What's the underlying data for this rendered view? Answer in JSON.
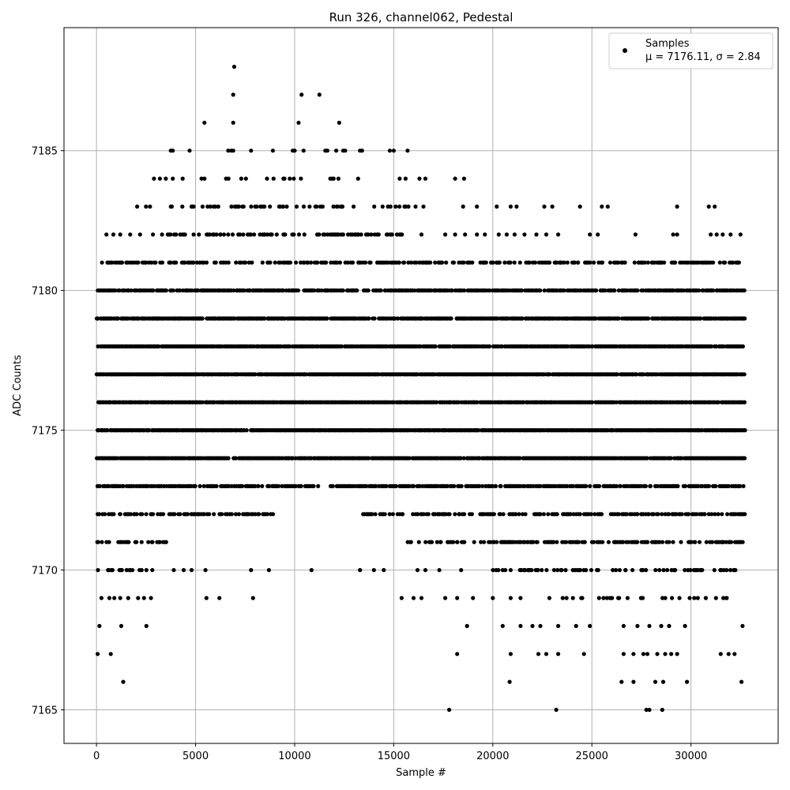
{
  "chart_data": {
    "type": "scatter",
    "title": "Run 326, channel062, Pedestal",
    "xlabel": "Sample #",
    "ylabel": "ADC Counts",
    "xlim": [
      -1640,
      34400
    ],
    "ylim": [
      7163.8,
      7189.4
    ],
    "x_ticks": [
      0,
      5000,
      10000,
      15000,
      20000,
      25000,
      30000
    ],
    "y_ticks": [
      7165,
      7170,
      7175,
      7180,
      7185
    ],
    "grid": true,
    "legend": {
      "position": "top-right",
      "label": "Samples",
      "stats": "μ = 7176.11, σ = 2.84"
    },
    "series": [
      {
        "name": "Samples",
        "color": "#000000",
        "marker": "circle",
        "bands": [
          {
            "y": 7174,
            "ranges": [
              [
                0,
                6700
              ],
              [
                6900,
                32700
              ]
            ],
            "density": 0.95
          },
          {
            "y": 7175,
            "ranges": [
              [
                0,
                32700
              ]
            ],
            "density": 0.95
          },
          {
            "y": 7176,
            "ranges": [
              [
                0,
                32700
              ]
            ],
            "density": 0.95
          },
          {
            "y": 7177,
            "ranges": [
              [
                0,
                32700
              ]
            ],
            "density": 0.95
          },
          {
            "y": 7178,
            "ranges": [
              [
                0,
                32700
              ]
            ],
            "density": 0.9
          },
          {
            "y": 7179,
            "ranges": [
              [
                0,
                32700
              ]
            ],
            "density": 0.85
          },
          {
            "y": 7180,
            "ranges": [
              [
                0,
                32700
              ]
            ],
            "density": 0.75
          },
          {
            "y": 7181,
            "ranges": [
              [
                200,
                16500
              ],
              [
                16500,
                32400
              ]
            ],
            "density": 0.5
          },
          {
            "y": 7173,
            "ranges": [
              [
                0,
                11200
              ],
              [
                11800,
                32700
              ]
            ],
            "density": 0.7
          },
          {
            "y": 7172,
            "ranges": [
              [
                0,
                8900
              ],
              [
                13400,
                32700
              ]
            ],
            "density": 0.55
          },
          {
            "y": 7171,
            "ranges": [
              [
                0,
                3500
              ],
              [
                15500,
                32700
              ]
            ],
            "density": 0.45
          },
          {
            "y": 7182,
            "ranges": [
              [
                3200,
                15400
              ]
            ],
            "density": 0.45
          },
          {
            "y": 7183,
            "ranges": [
              [
                3300,
                11400
              ],
              [
                11800,
                15700
              ]
            ],
            "density": 0.25
          },
          {
            "y": 7170,
            "ranges": [
              [
                0,
                2800
              ],
              [
                19800,
                32600
              ]
            ],
            "density": 0.3
          },
          {
            "y": 7169,
            "ranges": [
              [
                22500,
                32400
              ]
            ],
            "density": 0.15
          },
          {
            "y": 7184,
            "ranges": [
              [
                5800,
                10500
              ],
              [
                11300,
                13400
              ]
            ],
            "density": 0.15
          }
        ],
        "points": [
          [
            60,
            7167
          ],
          [
            720,
            7167
          ],
          [
            1350,
            7166
          ],
          [
            150,
            7168
          ],
          [
            1250,
            7168
          ],
          [
            2520,
            7168
          ],
          [
            250,
            7169
          ],
          [
            650,
            7169
          ],
          [
            900,
            7169
          ],
          [
            1200,
            7169
          ],
          [
            1600,
            7169
          ],
          [
            2100,
            7169
          ],
          [
            2400,
            7169
          ],
          [
            2750,
            7169
          ],
          [
            3900,
            7170
          ],
          [
            4400,
            7170
          ],
          [
            4800,
            7170
          ],
          [
            5500,
            7170
          ],
          [
            7800,
            7170
          ],
          [
            8700,
            7170
          ],
          [
            10850,
            7170
          ],
          [
            13300,
            7170
          ],
          [
            14000,
            7170
          ],
          [
            14500,
            7170
          ],
          [
            16200,
            7170
          ],
          [
            16600,
            7170
          ],
          [
            17300,
            7170
          ],
          [
            18400,
            7170
          ],
          [
            5550,
            7169
          ],
          [
            6200,
            7169
          ],
          [
            7900,
            7169
          ],
          [
            15400,
            7169
          ],
          [
            16000,
            7169
          ],
          [
            16400,
            7169
          ],
          [
            17600,
            7169
          ],
          [
            18200,
            7169
          ],
          [
            19000,
            7169
          ],
          [
            20000,
            7169
          ],
          [
            20900,
            7169
          ],
          [
            21400,
            7169
          ],
          [
            18700,
            7168
          ],
          [
            20500,
            7168
          ],
          [
            21400,
            7168
          ],
          [
            22000,
            7168
          ],
          [
            22400,
            7168
          ],
          [
            23300,
            7168
          ],
          [
            24200,
            7168
          ],
          [
            24900,
            7168
          ],
          [
            26600,
            7168
          ],
          [
            27300,
            7168
          ],
          [
            27900,
            7168
          ],
          [
            28500,
            7168
          ],
          [
            28900,
            7168
          ],
          [
            29700,
            7168
          ],
          [
            32600,
            7168
          ],
          [
            18200,
            7167
          ],
          [
            20900,
            7167
          ],
          [
            22300,
            7167
          ],
          [
            22700,
            7167
          ],
          [
            23300,
            7167
          ],
          [
            24600,
            7167
          ],
          [
            26600,
            7167
          ],
          [
            27100,
            7167
          ],
          [
            27600,
            7167
          ],
          [
            27800,
            7167
          ],
          [
            28300,
            7167
          ],
          [
            28700,
            7167
          ],
          [
            29000,
            7167
          ],
          [
            29300,
            7167
          ],
          [
            31500,
            7167
          ],
          [
            31900,
            7167
          ],
          [
            32200,
            7167
          ],
          [
            20850,
            7166
          ],
          [
            26500,
            7166
          ],
          [
            27100,
            7166
          ],
          [
            28200,
            7166
          ],
          [
            28600,
            7166
          ],
          [
            29800,
            7166
          ],
          [
            32550,
            7166
          ],
          [
            17800,
            7165
          ],
          [
            23200,
            7165
          ],
          [
            27750,
            7165
          ],
          [
            27900,
            7165
          ],
          [
            28550,
            7165
          ],
          [
            500,
            7182
          ],
          [
            850,
            7182
          ],
          [
            1200,
            7182
          ],
          [
            1700,
            7182
          ],
          [
            2200,
            7182
          ],
          [
            2850,
            7182
          ],
          [
            16400,
            7182
          ],
          [
            17600,
            7182
          ],
          [
            18100,
            7182
          ],
          [
            18600,
            7182
          ],
          [
            19200,
            7182
          ],
          [
            19600,
            7182
          ],
          [
            20300,
            7182
          ],
          [
            20700,
            7182
          ],
          [
            21100,
            7182
          ],
          [
            21600,
            7182
          ],
          [
            22200,
            7182
          ],
          [
            22700,
            7182
          ],
          [
            23300,
            7182
          ],
          [
            24900,
            7182
          ],
          [
            25300,
            7182
          ],
          [
            27200,
            7182
          ],
          [
            29100,
            7182
          ],
          [
            29300,
            7182
          ],
          [
            31000,
            7182
          ],
          [
            31300,
            7182
          ],
          [
            31600,
            7182
          ],
          [
            32000,
            7182
          ],
          [
            32500,
            7182
          ],
          [
            2050,
            7183
          ],
          [
            2500,
            7183
          ],
          [
            2700,
            7183
          ],
          [
            16100,
            7183
          ],
          [
            16500,
            7183
          ],
          [
            18500,
            7183
          ],
          [
            19200,
            7183
          ],
          [
            20200,
            7183
          ],
          [
            20900,
            7183
          ],
          [
            21200,
            7183
          ],
          [
            22600,
            7183
          ],
          [
            23000,
            7183
          ],
          [
            24400,
            7183
          ],
          [
            25500,
            7183
          ],
          [
            25800,
            7183
          ],
          [
            29300,
            7183
          ],
          [
            30900,
            7183
          ],
          [
            31200,
            7183
          ],
          [
            2900,
            7184
          ],
          [
            3200,
            7184
          ],
          [
            3500,
            7184
          ],
          [
            3850,
            7184
          ],
          [
            4350,
            7184
          ],
          [
            5300,
            7184
          ],
          [
            5450,
            7184
          ],
          [
            15300,
            7184
          ],
          [
            15600,
            7184
          ],
          [
            16300,
            7184
          ],
          [
            16600,
            7184
          ],
          [
            18100,
            7184
          ],
          [
            18550,
            7184
          ],
          [
            3750,
            7185
          ],
          [
            3850,
            7185
          ],
          [
            4700,
            7185
          ],
          [
            6650,
            7185
          ],
          [
            6800,
            7185
          ],
          [
            6900,
            7185
          ],
          [
            7800,
            7185
          ],
          [
            8900,
            7185
          ],
          [
            9900,
            7185
          ],
          [
            10000,
            7185
          ],
          [
            10450,
            7185
          ],
          [
            11550,
            7185
          ],
          [
            11650,
            7185
          ],
          [
            12100,
            7185
          ],
          [
            12450,
            7185
          ],
          [
            12550,
            7185
          ],
          [
            13300,
            7185
          ],
          [
            13400,
            7185
          ],
          [
            14800,
            7185
          ],
          [
            15000,
            7185
          ],
          [
            15700,
            7185
          ],
          [
            5450,
            7186
          ],
          [
            6900,
            7186
          ],
          [
            10200,
            7186
          ],
          [
            12250,
            7186
          ],
          [
            6900,
            7187
          ],
          [
            10350,
            7187
          ],
          [
            11250,
            7187
          ],
          [
            6950,
            7188
          ],
          [
            28500,
            7181
          ],
          [
            29200,
            7181
          ],
          [
            29800,
            7181
          ],
          [
            30100,
            7181
          ],
          [
            26200,
            7171
          ],
          [
            28200,
            7171
          ],
          [
            32500,
            7171
          ]
        ]
      }
    ]
  }
}
